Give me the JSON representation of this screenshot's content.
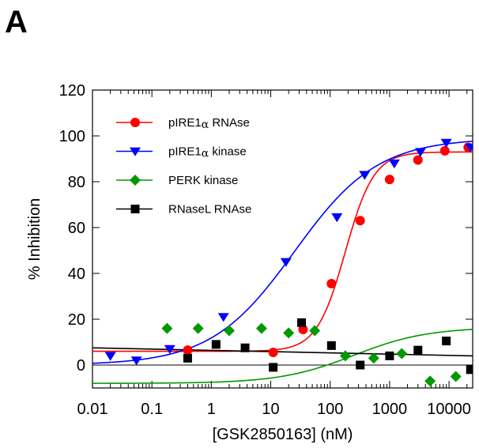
{
  "panel_label": "A",
  "chart_data": {
    "type": "scatter",
    "title": "",
    "xlabel": "[GSK2850163] (nM)",
    "ylabel": "% Inhibition",
    "xscale": "log",
    "xlim": [
      0.01,
      25000
    ],
    "ylim": [
      -10,
      120
    ],
    "xticks": [
      0.01,
      0.1,
      1,
      10,
      100,
      1000,
      10000
    ],
    "xtick_labels": [
      "0.01",
      "0.1",
      "1",
      "10",
      "100",
      "1000",
      "10000"
    ],
    "yticks": [
      0,
      20,
      40,
      60,
      80,
      100,
      120
    ],
    "ytick_labels": [
      "0",
      "20",
      "40",
      "60",
      "80",
      "100",
      "120"
    ],
    "grid": false,
    "legend_position": "top-left",
    "series": [
      {
        "name": "pIRE1α RNAse",
        "legend_main": "pIRE1",
        "legend_greek": "α",
        "legend_suffix": " RNAse",
        "color": "#ff0000",
        "marker": "circle",
        "x": [
          0.4,
          11,
          35,
          105,
          320,
          1000,
          3000,
          8500,
          21000
        ],
        "y": [
          6.5,
          5.5,
          15.5,
          35.5,
          63,
          81,
          89.5,
          93.5,
          95
        ],
        "fit": {
          "bottom": 6,
          "top": 93,
          "ec50": 180,
          "hill": 1.8
        }
      },
      {
        "name": "pIRE1α kinase",
        "legend_main": "pIRE1",
        "legend_greek": "α",
        "legend_suffix": " kinase",
        "color": "#0000ff",
        "marker": "triangle-down",
        "x": [
          0.02,
          0.055,
          0.2,
          1.6,
          18,
          130,
          380,
          1200,
          3300,
          9000,
          23000
        ],
        "y": [
          4,
          2,
          7,
          21,
          45,
          64.5,
          83,
          88,
          93,
          97,
          95
        ],
        "fit": {
          "bottom": 0,
          "top": 99,
          "ec50": 25,
          "hill": 0.62
        }
      },
      {
        "name": "PERK kinase",
        "legend_main": "PERK kinase",
        "legend_greek": "",
        "legend_suffix": "",
        "color": "#009900",
        "marker": "diamond",
        "x": [
          0.18,
          0.6,
          2,
          7,
          20,
          55,
          180,
          540,
          1600,
          4800,
          13000
        ],
        "y": [
          16,
          16,
          15,
          16,
          14,
          15,
          4,
          3,
          5,
          -7,
          -5
        ],
        "fit": {
          "bottom": -8,
          "top": 16.5,
          "ec50": 250,
          "hill": 0.7
        }
      },
      {
        "name": "RNaseL RNAse",
        "legend_main": "RNaseL RNAse",
        "legend_greek": "",
        "legend_suffix": "",
        "color": "#000000",
        "marker": "square",
        "x": [
          0.4,
          1.2,
          3.7,
          11,
          33,
          105,
          320,
          1000,
          3000,
          9000,
          23000
        ],
        "y": [
          3,
          9,
          7.5,
          -1,
          18.5,
          8.5,
          0,
          4,
          6.5,
          10.5,
          -2
        ],
        "fit_line": [
          [
            0.01,
            7.5
          ],
          [
            25000,
            4
          ]
        ]
      }
    ],
    "reference_line": {
      "y": 0
    }
  }
}
